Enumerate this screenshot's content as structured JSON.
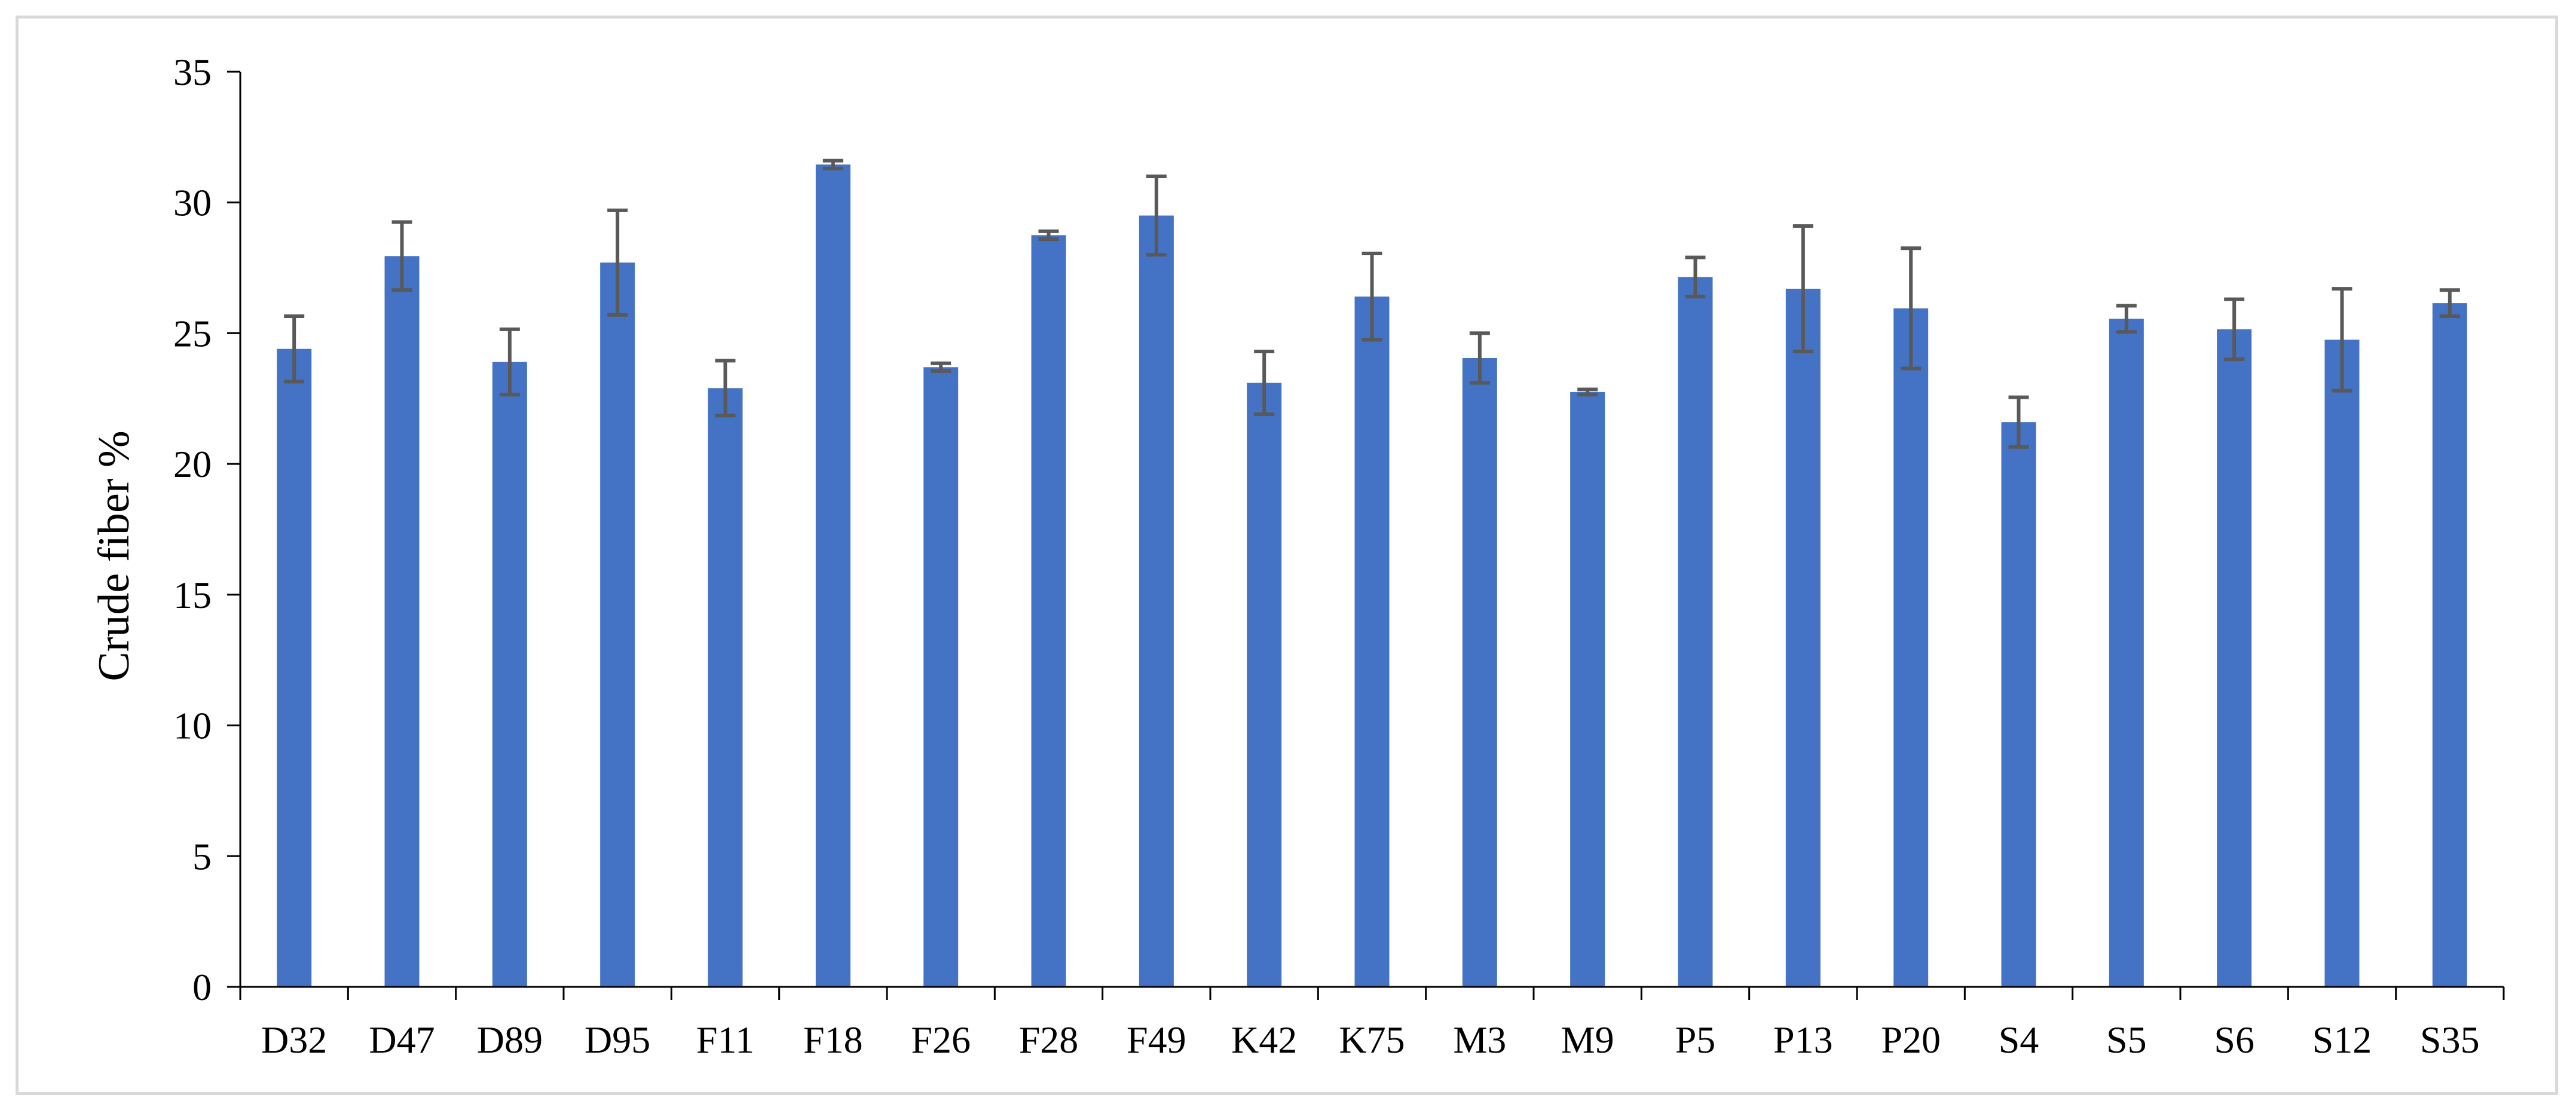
{
  "chart_data": {
    "type": "bar",
    "categories": [
      "D32",
      "D47",
      "D89",
      "D95",
      "F11",
      "F18",
      "F26",
      "F28",
      "F49",
      "K42",
      "K75",
      "M3",
      "M9",
      "P5",
      "P13",
      "P20",
      "S4",
      "S5",
      "S6",
      "S12",
      "S35"
    ],
    "series": [
      {
        "values": [
          24.4,
          27.95,
          23.9,
          27.7,
          22.9,
          31.45,
          23.7,
          28.75,
          29.5,
          23.1,
          26.4,
          24.05,
          22.75,
          27.15,
          26.7,
          25.95,
          21.6,
          25.55,
          25.15,
          24.75,
          26.15
        ],
        "errors": [
          1.25,
          1.3,
          1.25,
          2.0,
          1.05,
          0.15,
          0.15,
          0.15,
          1.5,
          1.2,
          1.65,
          0.95,
          0.1,
          0.75,
          2.4,
          2.3,
          0.95,
          0.5,
          1.15,
          1.95,
          0.5
        ]
      }
    ],
    "title": "",
    "xlabel": "",
    "ylabel": "Crude fiber %",
    "ylim": [
      0,
      35
    ],
    "yticks": [
      0,
      5,
      10,
      15,
      20,
      25,
      30,
      35
    ],
    "grid": false,
    "legend": "none",
    "bar_color": "#4472c4",
    "error_bar_color": "#595959"
  }
}
